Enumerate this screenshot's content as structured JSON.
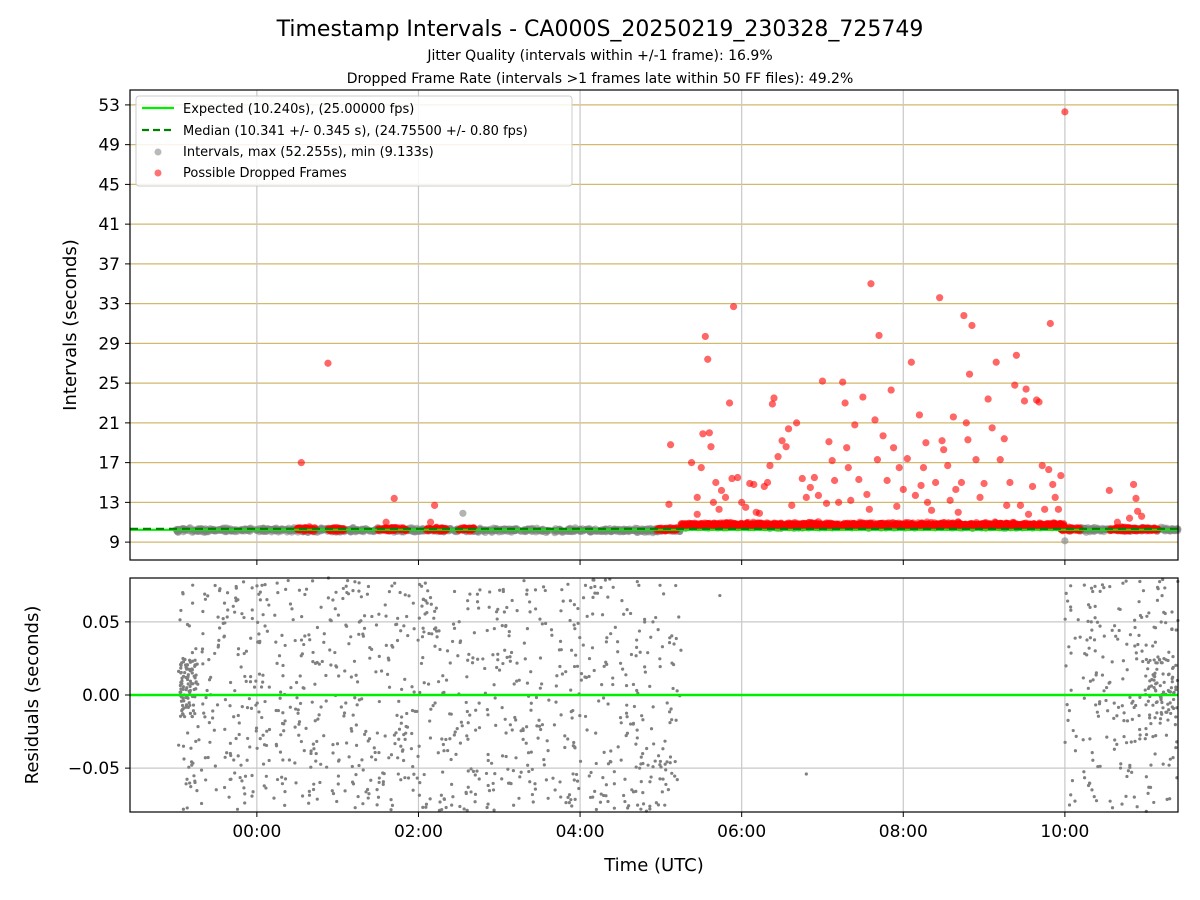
{
  "title": "Timestamp Intervals - CA000S_20250219_230328_725749",
  "subtitle1": "Jitter Quality (intervals within +/-1 frame): 16.9%",
  "subtitle2": "Dropped Frame Rate (intervals >1 frames late within 50 FF files): 49.2%",
  "colors": {
    "expected": "#00ee00",
    "median": "#008000",
    "intervals": "#808080",
    "dropped": "#ff0000",
    "hgrid_top": "#d2b96e",
    "vgrid": "#c8c8c8"
  },
  "chart_data": [
    {
      "type": "scatter",
      "panel": "intervals",
      "ylabel": "Intervals (seconds)",
      "ylim": [
        7.2,
        54.5
      ],
      "yticks": [
        "9",
        "13",
        "17",
        "21",
        "25",
        "29",
        "33",
        "37",
        "41",
        "45",
        "49",
        "53"
      ],
      "xlim_hours": [
        -1.57,
        11.4
      ],
      "legend_position": "upper-left",
      "legend": [
        "Expected (10.240s), (25.00000 fps)",
        "Median (10.341 +/- 0.345 s), (24.75500 +/- 0.80 fps)",
        "Intervals, max (52.255s), min (9.133s)",
        "Possible Dropped Frames"
      ],
      "expected_value": 10.24,
      "median_value": 10.341,
      "intervals_bands": [
        {
          "x_from": -1.0,
          "x_to": 5.25,
          "y_center": 10.2,
          "y_spread": 0.35
        },
        {
          "x_from": 5.25,
          "x_to": 10.0,
          "y_center": 10.55,
          "y_spread": 0.25
        },
        {
          "x_from": 10.0,
          "x_to": 11.4,
          "y_center": 10.25,
          "y_spread": 0.35
        }
      ],
      "interval_outliers": [
        {
          "x": 2.55,
          "y": 11.9
        },
        {
          "x": 10.0,
          "y": 9.13
        }
      ],
      "dropped_clusters": [
        {
          "x_from": 0.5,
          "x_to": 0.72,
          "y_center": 10.3,
          "y_spread": 0.3
        },
        {
          "x_from": 0.88,
          "x_to": 1.08,
          "y_center": 10.3,
          "y_spread": 0.3
        },
        {
          "x_from": 1.5,
          "x_to": 1.85,
          "y_center": 10.3,
          "y_spread": 0.3
        },
        {
          "x_from": 2.1,
          "x_to": 2.35,
          "y_center": 10.3,
          "y_spread": 0.3
        },
        {
          "x_from": 2.5,
          "x_to": 2.7,
          "y_center": 10.3,
          "y_spread": 0.3
        },
        {
          "x_from": 4.95,
          "x_to": 5.2,
          "y_center": 10.3,
          "y_spread": 0.25
        },
        {
          "x_from": 5.25,
          "x_to": 10.0,
          "y_center": 10.75,
          "y_spread": 0.35
        },
        {
          "x_from": 9.95,
          "x_to": 10.2,
          "y_center": 10.3,
          "y_spread": 0.3
        },
        {
          "x_from": 10.55,
          "x_to": 11.15,
          "y_center": 10.3,
          "y_spread": 0.3
        }
      ],
      "dropped_outliers": [
        {
          "x": 0.55,
          "y": 17.0
        },
        {
          "x": 0.88,
          "y": 27.0
        },
        {
          "x": 1.6,
          "y": 11.0
        },
        {
          "x": 1.7,
          "y": 13.4
        },
        {
          "x": 2.2,
          "y": 12.7
        },
        {
          "x": 2.15,
          "y": 11.0
        },
        {
          "x": 5.1,
          "y": 12.8
        },
        {
          "x": 5.12,
          "y": 18.8
        },
        {
          "x": 5.38,
          "y": 17.0
        },
        {
          "x": 5.45,
          "y": 13.5
        },
        {
          "x": 5.45,
          "y": 11.8
        },
        {
          "x": 5.5,
          "y": 16.5
        },
        {
          "x": 5.52,
          "y": 19.9
        },
        {
          "x": 5.55,
          "y": 29.7
        },
        {
          "x": 5.58,
          "y": 27.4
        },
        {
          "x": 5.6,
          "y": 20.0
        },
        {
          "x": 5.62,
          "y": 18.6
        },
        {
          "x": 5.65,
          "y": 13.0
        },
        {
          "x": 5.68,
          "y": 15.0
        },
        {
          "x": 5.72,
          "y": 12.3
        },
        {
          "x": 5.75,
          "y": 14.2
        },
        {
          "x": 5.8,
          "y": 13.5
        },
        {
          "x": 5.85,
          "y": 23.0
        },
        {
          "x": 5.88,
          "y": 15.4
        },
        {
          "x": 5.9,
          "y": 32.7
        },
        {
          "x": 5.95,
          "y": 15.5
        },
        {
          "x": 6.0,
          "y": 13.0
        },
        {
          "x": 6.05,
          "y": 12.5
        },
        {
          "x": 6.1,
          "y": 14.9
        },
        {
          "x": 6.15,
          "y": 14.8
        },
        {
          "x": 6.18,
          "y": 12.0
        },
        {
          "x": 6.22,
          "y": 11.9
        },
        {
          "x": 6.28,
          "y": 14.6
        },
        {
          "x": 6.32,
          "y": 15.0
        },
        {
          "x": 6.35,
          "y": 16.7
        },
        {
          "x": 6.38,
          "y": 22.9
        },
        {
          "x": 6.4,
          "y": 23.5
        },
        {
          "x": 6.45,
          "y": 17.6
        },
        {
          "x": 6.5,
          "y": 19.2
        },
        {
          "x": 6.55,
          "y": 18.6
        },
        {
          "x": 6.58,
          "y": 20.4
        },
        {
          "x": 6.62,
          "y": 12.7
        },
        {
          "x": 6.68,
          "y": 21.0
        },
        {
          "x": 6.75,
          "y": 15.4
        },
        {
          "x": 6.8,
          "y": 13.5
        },
        {
          "x": 6.85,
          "y": 14.5
        },
        {
          "x": 6.9,
          "y": 15.5
        },
        {
          "x": 6.95,
          "y": 13.7
        },
        {
          "x": 7.0,
          "y": 25.2
        },
        {
          "x": 7.05,
          "y": 12.9
        },
        {
          "x": 7.08,
          "y": 19.1
        },
        {
          "x": 7.12,
          "y": 17.2
        },
        {
          "x": 7.15,
          "y": 15.2
        },
        {
          "x": 7.2,
          "y": 13.0
        },
        {
          "x": 7.25,
          "y": 25.1
        },
        {
          "x": 7.28,
          "y": 23.0
        },
        {
          "x": 7.3,
          "y": 18.5
        },
        {
          "x": 7.32,
          "y": 16.5
        },
        {
          "x": 7.35,
          "y": 13.2
        },
        {
          "x": 7.4,
          "y": 20.8
        },
        {
          "x": 7.45,
          "y": 15.3
        },
        {
          "x": 7.5,
          "y": 23.6
        },
        {
          "x": 7.55,
          "y": 13.8
        },
        {
          "x": 7.58,
          "y": 12.3
        },
        {
          "x": 7.6,
          "y": 35.0
        },
        {
          "x": 7.65,
          "y": 21.3
        },
        {
          "x": 7.68,
          "y": 17.3
        },
        {
          "x": 7.7,
          "y": 29.8
        },
        {
          "x": 7.75,
          "y": 19.7
        },
        {
          "x": 7.8,
          "y": 15.2
        },
        {
          "x": 7.85,
          "y": 24.3
        },
        {
          "x": 7.88,
          "y": 18.5
        },
        {
          "x": 7.92,
          "y": 12.6
        },
        {
          "x": 7.95,
          "y": 16.5
        },
        {
          "x": 8.0,
          "y": 14.3
        },
        {
          "x": 8.05,
          "y": 17.4
        },
        {
          "x": 8.1,
          "y": 27.1
        },
        {
          "x": 8.15,
          "y": 13.7
        },
        {
          "x": 8.2,
          "y": 21.8
        },
        {
          "x": 8.22,
          "y": 14.7
        },
        {
          "x": 8.25,
          "y": 16.5
        },
        {
          "x": 8.28,
          "y": 19.0
        },
        {
          "x": 8.3,
          "y": 13.0
        },
        {
          "x": 8.35,
          "y": 12.2
        },
        {
          "x": 8.4,
          "y": 15.0
        },
        {
          "x": 8.45,
          "y": 33.6
        },
        {
          "x": 8.48,
          "y": 19.2
        },
        {
          "x": 8.5,
          "y": 18.3
        },
        {
          "x": 8.55,
          "y": 16.7
        },
        {
          "x": 8.58,
          "y": 13.2
        },
        {
          "x": 8.62,
          "y": 21.6
        },
        {
          "x": 8.65,
          "y": 14.3
        },
        {
          "x": 8.68,
          "y": 12.0
        },
        {
          "x": 8.72,
          "y": 15.0
        },
        {
          "x": 8.75,
          "y": 31.8
        },
        {
          "x": 8.78,
          "y": 21.0
        },
        {
          "x": 8.8,
          "y": 19.3
        },
        {
          "x": 8.82,
          "y": 25.9
        },
        {
          "x": 8.85,
          "y": 30.8
        },
        {
          "x": 8.9,
          "y": 17.3
        },
        {
          "x": 8.95,
          "y": 13.5
        },
        {
          "x": 9.0,
          "y": 14.9
        },
        {
          "x": 9.05,
          "y": 23.4
        },
        {
          "x": 9.1,
          "y": 20.5
        },
        {
          "x": 9.15,
          "y": 27.1
        },
        {
          "x": 9.2,
          "y": 17.3
        },
        {
          "x": 9.25,
          "y": 19.4
        },
        {
          "x": 9.28,
          "y": 12.7
        },
        {
          "x": 9.32,
          "y": 15.0
        },
        {
          "x": 9.38,
          "y": 24.8
        },
        {
          "x": 9.4,
          "y": 27.8
        },
        {
          "x": 9.45,
          "y": 12.7
        },
        {
          "x": 9.5,
          "y": 23.2
        },
        {
          "x": 9.52,
          "y": 24.4
        },
        {
          "x": 9.55,
          "y": 11.8
        },
        {
          "x": 9.6,
          "y": 14.6
        },
        {
          "x": 9.65,
          "y": 23.3
        },
        {
          "x": 9.68,
          "y": 23.1
        },
        {
          "x": 9.72,
          "y": 16.7
        },
        {
          "x": 9.75,
          "y": 12.3
        },
        {
          "x": 9.8,
          "y": 16.3
        },
        {
          "x": 9.82,
          "y": 31.0
        },
        {
          "x": 9.85,
          "y": 14.8
        },
        {
          "x": 9.88,
          "y": 13.5
        },
        {
          "x": 9.92,
          "y": 12.3
        },
        {
          "x": 9.95,
          "y": 15.7
        },
        {
          "x": 10.0,
          "y": 52.3
        },
        {
          "x": 10.55,
          "y": 14.2
        },
        {
          "x": 10.65,
          "y": 11.0
        },
        {
          "x": 10.8,
          "y": 11.4
        },
        {
          "x": 10.85,
          "y": 14.8
        },
        {
          "x": 10.88,
          "y": 13.4
        },
        {
          "x": 10.9,
          "y": 12.1
        },
        {
          "x": 10.95,
          "y": 11.6
        }
      ]
    },
    {
      "type": "scatter",
      "panel": "residuals",
      "xlabel": "Time (UTC)",
      "ylabel": "Residuals (seconds)",
      "ylim": [
        -0.08,
        0.08
      ],
      "yticks": [
        "0.05",
        "0.00",
        "−0.05"
      ],
      "ytick_values": [
        0.05,
        0.0,
        -0.05
      ],
      "xticks": [
        "00:00",
        "02:00",
        "04:00",
        "06:00",
        "08:00",
        "10:00"
      ],
      "xtick_hours": [
        0,
        2,
        4,
        6,
        8,
        10
      ],
      "xlim_hours": [
        -1.57,
        11.4
      ],
      "zero_line": 0.0,
      "residual_bands": [
        {
          "x_from": -0.97,
          "x_to": 5.26,
          "y_from": -0.08,
          "y_to": 0.08
        },
        {
          "x_from": 10.0,
          "x_to": 11.4,
          "y_from": -0.08,
          "y_to": 0.08
        }
      ],
      "residual_cluster": {
        "x_from": -0.95,
        "x_to": -0.75,
        "y_from": -0.015,
        "y_to": 0.025
      },
      "residual_outliers": [
        {
          "x": 5.73,
          "y": 0.068
        },
        {
          "x": 6.8,
          "y": -0.054
        }
      ]
    }
  ]
}
